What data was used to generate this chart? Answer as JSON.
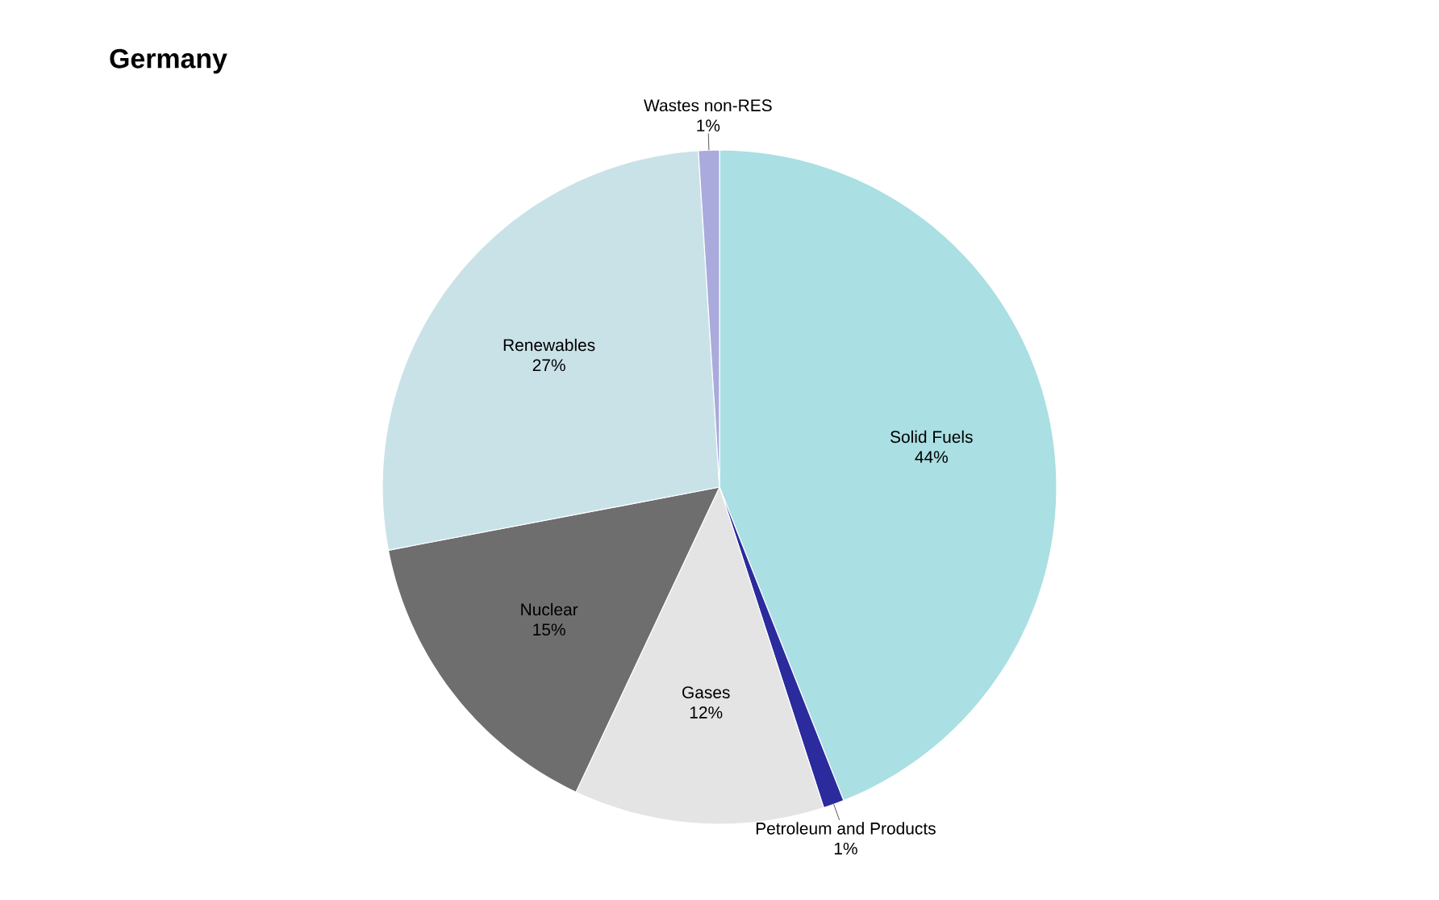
{
  "chart_data": {
    "type": "pie",
    "title": "Germany",
    "categories": [
      "Solid Fuels",
      "Petroleum and Products",
      "Gases",
      "Nuclear",
      "Renewables",
      "Wastes non-RES"
    ],
    "values": [
      44,
      1,
      12,
      15,
      27,
      1
    ],
    "value_labels": [
      "44%",
      "1%",
      "12%",
      "15%",
      "27%",
      "1%"
    ],
    "colors": [
      "#aadfe3",
      "#2b2b9e",
      "#e4e4e4",
      "#6e6e6e",
      "#c9e2e8",
      "#aaaadd"
    ]
  }
}
